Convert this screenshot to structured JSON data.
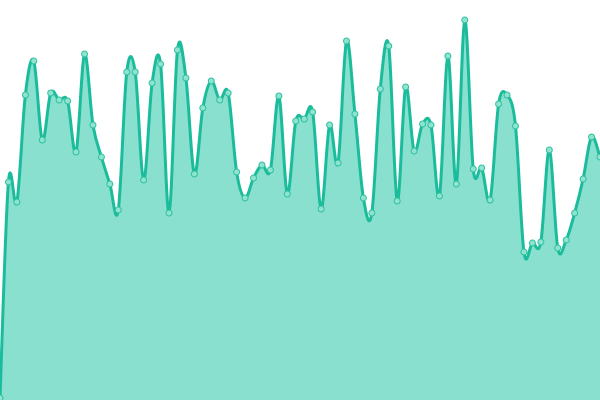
{
  "chart_data": {
    "type": "area",
    "title": "",
    "xlabel": "",
    "ylabel": "",
    "ylim": [
      0,
      400
    ],
    "grid": false,
    "legend": "none",
    "curve": "smooth",
    "markers": true,
    "colors": {
      "line": "#1bbc9b",
      "fill": "#8ae0ce",
      "marker_fill": "#8fe3cf",
      "marker_stroke": "#2cc19f"
    },
    "x": [
      0,
      1,
      2,
      3,
      4,
      5,
      6,
      7,
      8,
      9,
      10,
      11,
      12,
      13,
      14,
      15,
      16,
      17,
      18,
      19,
      20,
      21,
      22,
      23,
      24,
      25,
      26,
      27,
      28,
      29,
      30,
      31,
      32,
      33,
      34,
      35,
      36,
      37,
      38,
      39,
      40,
      41,
      42,
      43,
      44,
      45,
      46,
      47,
      48,
      49,
      50,
      51,
      52,
      53,
      54,
      55,
      56,
      57,
      58,
      59,
      60,
      61,
      62,
      63,
      64,
      65,
      66,
      67,
      68,
      69,
      70,
      71
    ],
    "values": [
      2,
      218,
      198,
      305,
      339,
      260,
      307,
      300,
      299,
      248,
      346,
      275,
      243,
      216,
      190,
      328,
      328,
      220,
      317,
      336,
      187,
      350,
      322,
      226,
      292,
      319,
      300,
      307,
      228,
      202,
      222,
      235,
      230,
      304,
      206,
      279,
      281,
      288,
      191,
      275,
      237,
      359,
      286,
      202,
      187,
      311,
      354,
      199,
      313,
      249,
      276,
      275,
      204,
      344,
      216,
      380,
      231,
      232,
      200,
      296,
      305,
      274,
      148,
      157,
      158,
      250,
      152,
      160,
      187,
      221,
      263,
      243
    ]
  }
}
